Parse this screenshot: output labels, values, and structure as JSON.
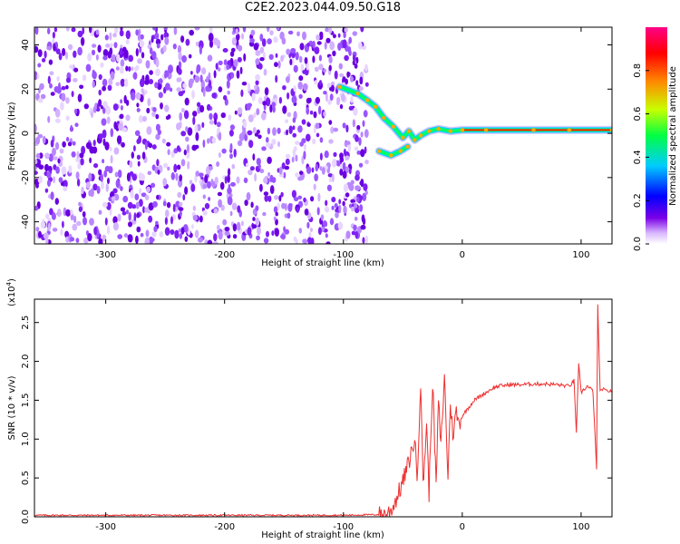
{
  "title": "C2E2.2023.044.09.50.G18",
  "chart_data": [
    {
      "type": "heatmap",
      "xlabel": "Height of straight line (km)",
      "ylabel": "Frequency (Hz)",
      "xlim": [
        -360,
        126
      ],
      "ylim": [
        -50,
        48
      ],
      "xticks": [
        -300,
        -200,
        -100,
        0,
        100
      ],
      "yticks": [
        -40,
        -20,
        0,
        20,
        40
      ],
      "colorbar": {
        "label": "Normalized spectral amplitude",
        "range": [
          0,
          1
        ],
        "ticks": [
          "0.0",
          "0.2",
          "0.4",
          "0.6",
          "0.8"
        ],
        "colors": [
          "#ffffff",
          "#7a00e6",
          "#0000ff",
          "#00ccff",
          "#00ff44",
          "#c8ff00",
          "#ff8800",
          "#ff0000",
          "#ff0088"
        ]
      },
      "noise_region_x": [
        -360,
        -80
      ],
      "ridge_points": [
        {
          "x": -103,
          "y": 21
        },
        {
          "x": -88,
          "y": 18
        },
        {
          "x": -80,
          "y": 15
        },
        {
          "x": -73,
          "y": 12
        },
        {
          "x": -66,
          "y": 7
        },
        {
          "x": -58,
          "y": 3
        },
        {
          "x": -50,
          "y": -2
        },
        {
          "x": -45,
          "y": 1
        },
        {
          "x": -40,
          "y": -3
        },
        {
          "x": -35,
          "y": -1
        },
        {
          "x": -28,
          "y": 1
        },
        {
          "x": -20,
          "y": 2
        },
        {
          "x": -10,
          "y": 1
        },
        {
          "x": 0,
          "y": 1.5
        },
        {
          "x": 20,
          "y": 1.5
        },
        {
          "x": 60,
          "y": 1.5
        },
        {
          "x": 90,
          "y": 1.5
        },
        {
          "x": 126,
          "y": 1.5
        }
      ],
      "lower_branch_points": [
        {
          "x": -70,
          "y": -8
        },
        {
          "x": -60,
          "y": -10
        },
        {
          "x": -52,
          "y": -8
        },
        {
          "x": -46,
          "y": -6
        }
      ]
    },
    {
      "type": "line",
      "xlabel": "Height of straight line (km)",
      "ylabel": "SNR (10 * v/v)",
      "yscale_label": "(x10",
      "yscale_exp": "4",
      "xlim": [
        -360,
        126
      ],
      "ylim": [
        0,
        2.8
      ],
      "xticks": [
        -300,
        -200,
        -100,
        0,
        100
      ],
      "yticks": [
        0.0,
        0.5,
        1.0,
        1.5,
        2.0,
        2.5
      ],
      "ytick_labels": [
        "0.0",
        "0.5",
        "1.0",
        "1.5",
        "2.0",
        "2.5"
      ],
      "color": "#ee3030",
      "series": [
        {
          "x": [
            -360,
            -300,
            -200,
            -100,
            -65,
            -60,
            -55,
            -50,
            -45,
            -40,
            -38,
            -35,
            -33,
            -30,
            -28,
            -25,
            -22,
            -20,
            -18,
            -15,
            -12,
            -10,
            -8,
            -5,
            -3,
            0,
            5,
            10,
            15,
            20,
            25,
            30,
            40,
            50,
            60,
            70,
            80,
            90,
            94,
            96,
            98,
            100,
            105,
            110,
            113,
            114,
            116,
            118,
            120,
            126
          ],
          "y": [
            0.02,
            0.02,
            0.02,
            0.02,
            0.03,
            0.08,
            0.25,
            0.45,
            0.7,
            1.0,
            0.5,
            1.75,
            0.4,
            1.2,
            0.3,
            1.75,
            0.4,
            1.5,
            0.9,
            1.8,
            0.5,
            1.5,
            1.05,
            1.35,
            1.2,
            1.3,
            1.4,
            1.5,
            1.55,
            1.6,
            1.65,
            1.68,
            1.7,
            1.7,
            1.71,
            1.71,
            1.7,
            1.68,
            1.75,
            1.1,
            1.95,
            1.6,
            1.68,
            1.62,
            0.6,
            2.75,
            1.6,
            1.65,
            1.62,
            1.62
          ]
        }
      ]
    }
  ]
}
